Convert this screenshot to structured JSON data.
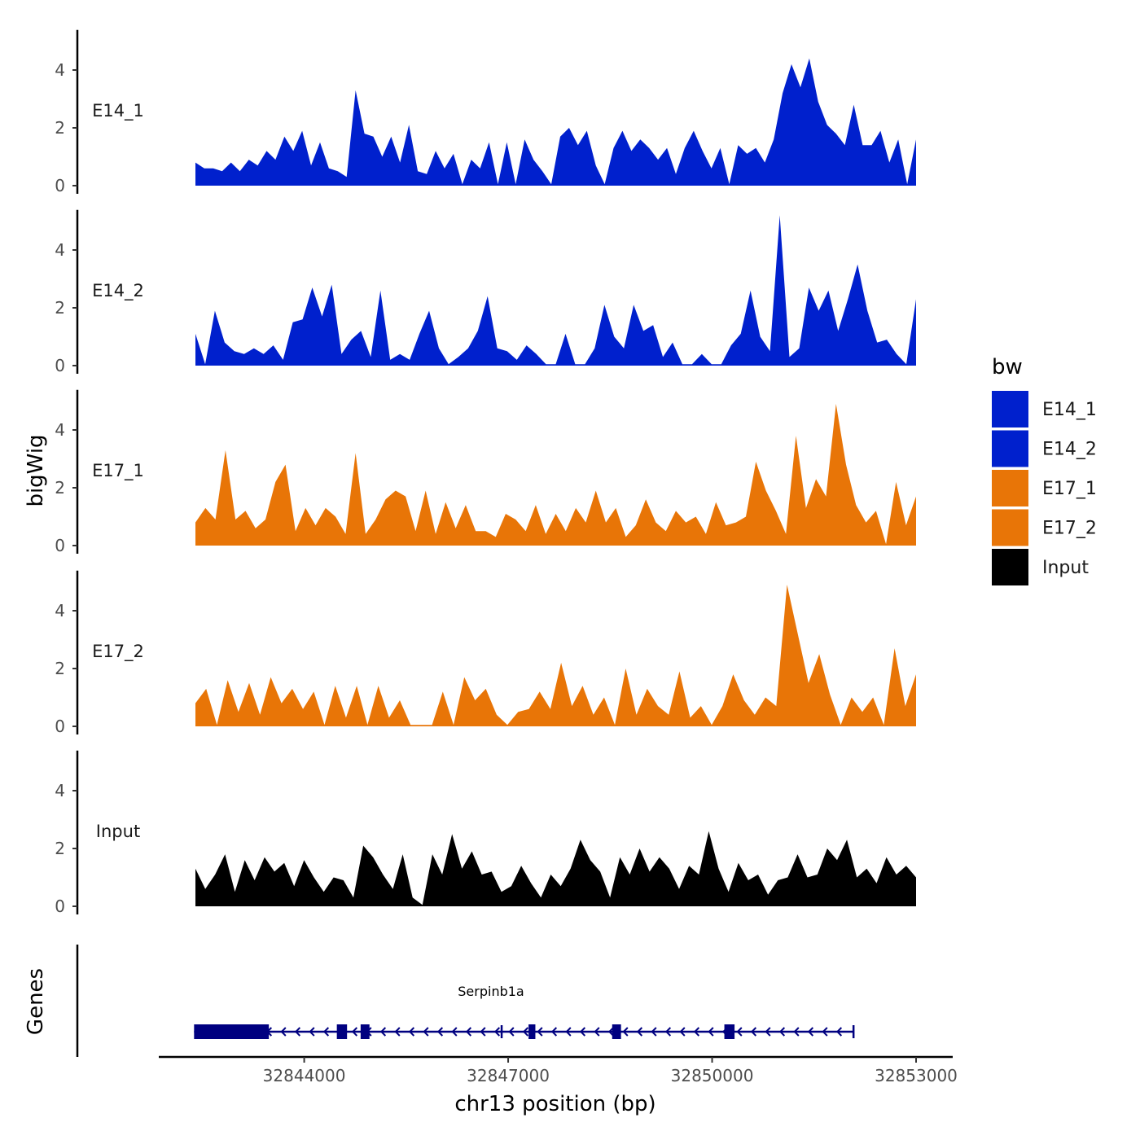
{
  "chart_data": {
    "type": "area",
    "title": "",
    "xlabel": "chr13 position (bp)",
    "ylabel": "bigWig",
    "genes_label": "Genes",
    "xlim": [
      32841800,
      32853600
    ],
    "ylim": [
      0,
      5.5
    ],
    "x_ticks": [
      32844000,
      32847000,
      32850000,
      32853000
    ],
    "y_ticks": [
      0,
      2,
      4
    ],
    "legend": {
      "title": "bw",
      "position": "right",
      "entries": [
        {
          "label": "E14_1",
          "color": "#0020CD"
        },
        {
          "label": "E14_2",
          "color": "#0020CD"
        },
        {
          "label": "E17_1",
          "color": "#E87507"
        },
        {
          "label": "E17_2",
          "color": "#E87507"
        },
        {
          "label": "Input",
          "color": "#000000"
        }
      ]
    },
    "x_start": 32842400,
    "x_end": 32853000,
    "series": [
      {
        "name": "E14_1",
        "color": "#0020CD",
        "values": [
          0.8,
          0.6,
          0.6,
          0.5,
          0.8,
          0.5,
          0.9,
          0.7,
          1.2,
          0.9,
          1.7,
          1.2,
          1.9,
          0.7,
          1.5,
          0.6,
          0.5,
          0.3,
          3.3,
          1.8,
          1.7,
          1.0,
          1.7,
          0.8,
          2.1,
          0.5,
          0.4,
          1.2,
          0.6,
          1.1,
          0.05,
          0.9,
          0.6,
          1.5,
          0.05,
          1.5,
          0.05,
          1.6,
          0.9,
          0.5,
          0.05,
          1.7,
          2.0,
          1.4,
          1.9,
          0.7,
          0.05,
          1.3,
          1.9,
          1.2,
          1.6,
          1.3,
          0.9,
          1.3,
          0.4,
          1.3,
          1.9,
          1.2,
          0.6,
          1.3,
          0.05,
          1.4,
          1.1,
          1.3,
          0.8,
          1.6,
          3.2,
          4.2,
          3.4,
          4.4,
          2.9,
          2.1,
          1.8,
          1.4,
          2.8,
          1.4,
          1.4,
          1.9,
          0.8,
          1.6,
          0.05,
          1.6
        ]
      },
      {
        "name": "E14_2",
        "color": "#0020CD",
        "values": [
          1.1,
          0.05,
          1.9,
          0.8,
          0.5,
          0.4,
          0.6,
          0.4,
          0.7,
          0.2,
          1.5,
          1.6,
          2.7,
          1.7,
          2.8,
          0.4,
          0.9,
          1.2,
          0.3,
          2.6,
          0.2,
          0.4,
          0.2,
          1.1,
          1.9,
          0.6,
          0.05,
          0.3,
          0.6,
          1.2,
          2.4,
          0.6,
          0.5,
          0.2,
          0.7,
          0.4,
          0.05,
          0.05,
          1.1,
          0.05,
          0.05,
          0.6,
          2.1,
          1.0,
          0.6,
          2.1,
          1.2,
          1.4,
          0.3,
          0.8,
          0.05,
          0.05,
          0.4,
          0.05,
          0.05,
          0.7,
          1.1,
          2.6,
          1.0,
          0.5,
          5.2,
          0.3,
          0.6,
          2.7,
          1.9,
          2.6,
          1.2,
          2.3,
          3.5,
          1.9,
          0.8,
          0.9,
          0.4,
          0.05,
          2.3
        ]
      },
      {
        "name": "E17_1",
        "color": "#E87507",
        "values": [
          0.8,
          1.3,
          0.9,
          3.3,
          0.9,
          1.2,
          0.6,
          0.9,
          2.2,
          2.8,
          0.5,
          1.3,
          0.7,
          1.3,
          1.0,
          0.4,
          3.2,
          0.4,
          0.9,
          1.6,
          1.9,
          1.7,
          0.5,
          1.9,
          0.4,
          1.5,
          0.6,
          1.4,
          0.5,
          0.5,
          0.3,
          1.1,
          0.9,
          0.5,
          1.4,
          0.4,
          1.1,
          0.5,
          1.3,
          0.8,
          1.9,
          0.8,
          1.3,
          0.3,
          0.7,
          1.6,
          0.8,
          0.5,
          1.2,
          0.8,
          1.0,
          0.4,
          1.5,
          0.7,
          0.8,
          1.0,
          2.9,
          1.9,
          1.2,
          0.4,
          3.8,
          1.3,
          2.3,
          1.7,
          4.9,
          2.8,
          1.4,
          0.8,
          1.2,
          0.05,
          2.2,
          0.7,
          1.7
        ]
      },
      {
        "name": "E17_2",
        "color": "#E87507",
        "values": [
          0.8,
          1.3,
          0.05,
          1.6,
          0.5,
          1.5,
          0.4,
          1.7,
          0.8,
          1.3,
          0.6,
          1.2,
          0.05,
          1.4,
          0.3,
          1.4,
          0.05,
          1.4,
          0.3,
          0.9,
          0.05,
          0.05,
          0.05,
          1.2,
          0.05,
          1.7,
          0.9,
          1.3,
          0.4,
          0.05,
          0.5,
          0.6,
          1.2,
          0.6,
          2.2,
          0.7,
          1.4,
          0.4,
          1.0,
          0.05,
          2.0,
          0.4,
          1.3,
          0.7,
          0.4,
          1.9,
          0.3,
          0.7,
          0.05,
          0.7,
          1.8,
          0.9,
          0.4,
          1.0,
          0.7,
          4.9,
          3.2,
          1.5,
          2.5,
          1.1,
          0.05,
          1.0,
          0.5,
          1.0,
          0.05,
          2.7,
          0.7,
          1.8
        ]
      },
      {
        "name": "Input",
        "color": "#000000",
        "values": [
          1.3,
          0.6,
          1.1,
          1.8,
          0.5,
          1.6,
          0.9,
          1.7,
          1.2,
          1.5,
          0.7,
          1.6,
          1.0,
          0.5,
          1.0,
          0.9,
          0.3,
          2.1,
          1.7,
          1.1,
          0.6,
          1.8,
          0.3,
          0.05,
          1.8,
          1.1,
          2.5,
          1.3,
          1.9,
          1.1,
          1.2,
          0.5,
          0.7,
          1.4,
          0.8,
          0.3,
          1.1,
          0.7,
          1.3,
          2.3,
          1.6,
          1.2,
          0.3,
          1.7,
          1.1,
          2.0,
          1.2,
          1.7,
          1.3,
          0.6,
          1.4,
          1.1,
          2.6,
          1.3,
          0.5,
          1.5,
          0.9,
          1.1,
          0.4,
          0.9,
          1.0,
          1.8,
          1.0,
          1.1,
          2.0,
          1.6,
          2.3,
          1.0,
          1.3,
          0.8,
          1.7,
          1.1,
          1.4,
          1.0
        ]
      }
    ],
    "gene": {
      "name": "Serpinb1a",
      "strand": "-",
      "color": "#000080",
      "start": 32842380,
      "end": 32852080,
      "exons": [
        [
          32842380,
          32843480
        ],
        [
          32844480,
          32844630
        ],
        [
          32844830,
          32844960
        ],
        [
          32847300,
          32847400
        ],
        [
          32848530,
          32848660
        ],
        [
          32850180,
          32850330
        ]
      ]
    }
  }
}
